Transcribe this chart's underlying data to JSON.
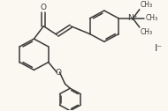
{
  "bg_color": "#faf8f0",
  "line_color": "#3a3a3a",
  "line_width": 1.1,
  "font_size": 6.5,
  "iodide_label": "I⁻",
  "n_label": "N⁺",
  "o_label": "O"
}
